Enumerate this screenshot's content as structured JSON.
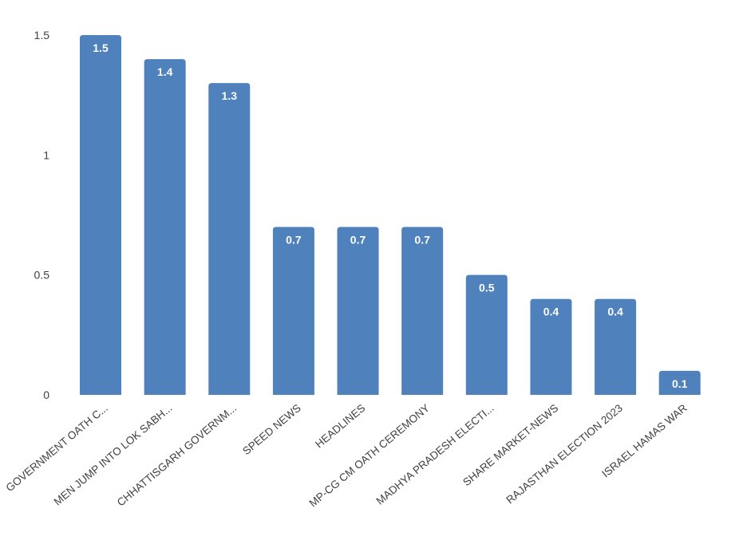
{
  "chart_data": {
    "type": "bar",
    "categories": [
      "GOVERNMENT OATH C...",
      "MEN JUMP INTO LOK SABH...",
      "CHHATTISGARH GOVERNM...",
      "SPEED NEWS",
      "HEADLINES",
      "MP-CG CM OATH CEREMONY",
      "MADHYA PRADESH ELECTI...",
      "SHARE MARKET-NEWS",
      "RAJASTHAN ELECTION 2023",
      "ISRAEL HAMAS WAR"
    ],
    "values": [
      1.5,
      1.4,
      1.3,
      0.7,
      0.7,
      0.7,
      0.5,
      0.4,
      0.4,
      0.1
    ],
    "color": "#4f81bd",
    "ylim": [
      0,
      1.5
    ],
    "yticks": [
      0,
      0.5,
      1,
      1.5
    ]
  }
}
